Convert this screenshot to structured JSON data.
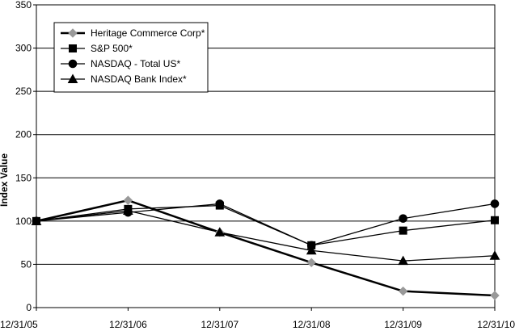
{
  "chart_data": {
    "type": "line",
    "title": "",
    "xlabel": "",
    "ylabel": "Index Value",
    "ylim": [
      0,
      350
    ],
    "yticks": [
      0,
      50,
      100,
      150,
      200,
      250,
      300,
      350
    ],
    "grid": "horizontal",
    "legend_position": "top-left",
    "categories": [
      "12/31/05",
      "12/31/06",
      "12/31/07",
      "12/31/08",
      "12/31/09",
      "12/31/10"
    ],
    "series": [
      {
        "name": "Heritage Commerce Corp*",
        "values": [
          100,
          124,
          87,
          52,
          19,
          14
        ],
        "marker": "diamond",
        "line_color": "#000000",
        "marker_color": "#999999"
      },
      {
        "name": "S&P 500*",
        "values": [
          100,
          114,
          118,
          72,
          89,
          101
        ],
        "marker": "square",
        "line_color": "#000000",
        "marker_color": "#000000"
      },
      {
        "name": "NASDAQ - Total US*",
        "values": [
          100,
          110,
          120,
          72,
          103,
          120
        ],
        "marker": "circle",
        "line_color": "#000000",
        "marker_color": "#000000"
      },
      {
        "name": "NASDAQ Bank Index*",
        "values": [
          100,
          112,
          87,
          66,
          54,
          60
        ],
        "marker": "triangle",
        "line_color": "#000000",
        "marker_color": "#000000"
      }
    ]
  }
}
